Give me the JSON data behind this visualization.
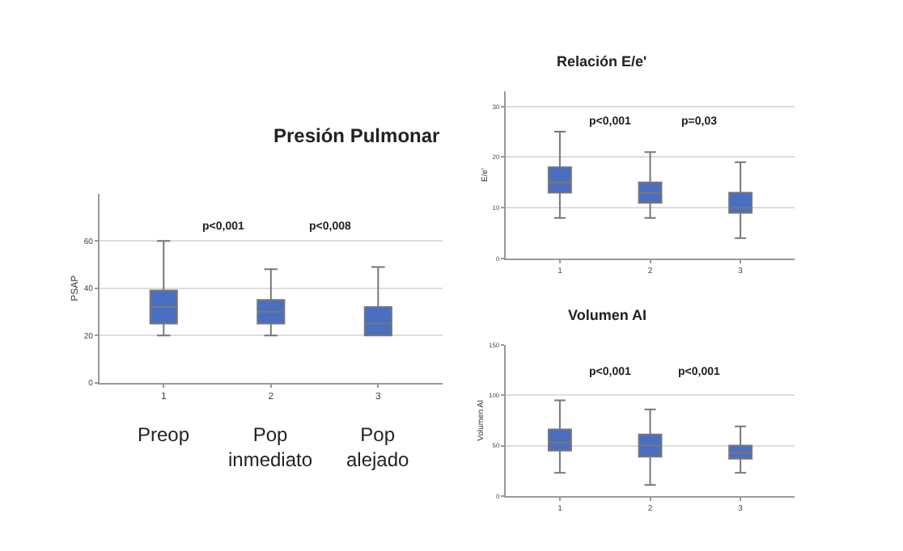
{
  "chart_data": [
    {
      "type": "box",
      "title": "Presión Pulmonar",
      "ylabel": "PSAP",
      "categories": [
        "1",
        "2",
        "3"
      ],
      "color": "#4a6fc1",
      "ylim": [
        0,
        80
      ],
      "yticks": [
        0,
        20,
        40,
        60
      ],
      "grid": "y",
      "boxes": [
        {
          "low": 20,
          "q1": 25,
          "median": 32,
          "q3": 39,
          "high": 60
        },
        {
          "low": 20,
          "q1": 25,
          "median": 30,
          "q3": 35,
          "high": 48
        },
        {
          "low": 20,
          "q1": 20,
          "median": 25,
          "q3": 32,
          "high": 49
        }
      ],
      "annotations": [
        "p<0,001",
        "p<0,008",
        "Preop",
        "Pop\ninmediato",
        "Pop\nalejado"
      ]
    },
    {
      "type": "box",
      "title": "Relación E/e'",
      "ylabel": "E/e'",
      "categories": [
        "1",
        "2",
        "3"
      ],
      "color": "#4a6fc1",
      "ylim": [
        0,
        33
      ],
      "yticks": [
        0,
        10,
        20,
        30
      ],
      "grid": "y",
      "boxes": [
        {
          "low": 8,
          "q1": 13,
          "median": 15,
          "q3": 18,
          "high": 25
        },
        {
          "low": 8,
          "q1": 11,
          "median": 13,
          "q3": 15,
          "high": 21
        },
        {
          "low": 4,
          "q1": 9,
          "median": 10,
          "q3": 13,
          "high": 19
        }
      ],
      "annotations": [
        "p<0,001",
        "p=0,03"
      ]
    },
    {
      "type": "box",
      "title": "Volumen AI",
      "ylabel": "Volumen AI",
      "categories": [
        "1",
        "2",
        "3"
      ],
      "color": "#4a6fc1",
      "ylim": [
        0,
        150
      ],
      "yticks": [
        0,
        50,
        100,
        150
      ],
      "grid": "y",
      "boxes": [
        {
          "low": 23,
          "q1": 45,
          "median": 53,
          "q3": 66,
          "high": 95
        },
        {
          "low": 11,
          "q1": 39,
          "median": 50,
          "q3": 61,
          "high": 86
        },
        {
          "low": 23,
          "q1": 37,
          "median": 43,
          "q3": 50,
          "high": 69
        }
      ],
      "annotations": [
        "p<0,001",
        "p<0,001"
      ]
    }
  ]
}
